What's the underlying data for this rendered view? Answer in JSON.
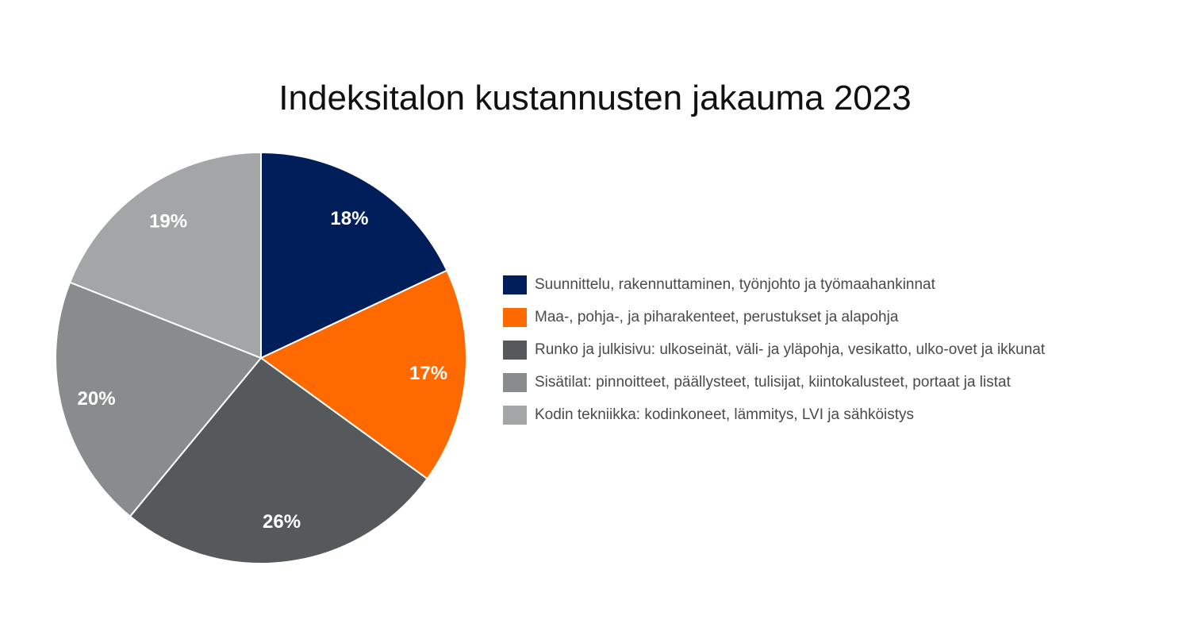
{
  "chart_data": {
    "type": "pie",
    "title": "Indeksitalon kustannusten jakauma 2023",
    "unit": "%",
    "categories": [
      "Suunnittelu, rakennuttaminen, työnjohto ja työmaahankinnat",
      "Maa-, pohja-, ja piharakenteet, perustukset ja alapohja",
      "Runko ja julkisivu: ulkoseinät, väli- ja yläpohja, vesikatto, ulko-ovet ja ikkunat",
      "Sisätilat: pinnoitteet, päällysteet, tulisijat, kiintokalusteet, portaat ja listat",
      "Kodin tekniikka: kodinkoneet, lämmitys, LVI ja sähköistys"
    ],
    "values": [
      18,
      17,
      26,
      20,
      19
    ],
    "value_labels": [
      "18%",
      "17%",
      "26%",
      "20%",
      "19%"
    ],
    "colors": [
      "#001e5a",
      "#ff6a00",
      "#55595c",
      "#888c8c",
      "#a2a6a6"
    ],
    "legend_position": "right",
    "start_angle": "12 o'clock",
    "direction": "clockwise"
  }
}
